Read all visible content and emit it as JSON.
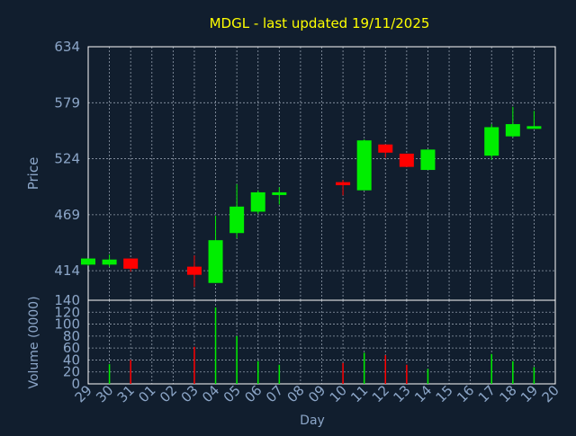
{
  "colors": {
    "background": "#111e2e",
    "title": "#ffff00",
    "axis_text": "#8ca6c8",
    "up": "#00ee00",
    "down": "#ff0000",
    "grid": "#c8d2e0",
    "frame": "#ffffff"
  },
  "chart_data": [
    {
      "type": "candlestick",
      "title": "MDGL - last updated 19/11/2025",
      "ylabel": "Price",
      "ylim": [
        385,
        634
      ],
      "yticks": [
        414,
        469,
        524,
        579,
        634
      ],
      "grid": true,
      "x_tick_labels": [
        "29",
        "30",
        "31",
        "01",
        "02",
        "03",
        "04",
        "05",
        "06",
        "07",
        "08",
        "09",
        "10",
        "11",
        "12",
        "13",
        "14",
        "15",
        "16",
        "17",
        "18",
        "19",
        "20"
      ],
      "candles": [
        {
          "day": "29",
          "open": 420,
          "high": 426,
          "low": 419,
          "close": 426
        },
        {
          "day": "30",
          "open": 420,
          "high": 430,
          "low": 418,
          "close": 425
        },
        {
          "day": "31",
          "open": 426,
          "high": 426,
          "low": 413,
          "close": 416
        },
        {
          "day": "03",
          "open": 418,
          "high": 429,
          "low": 398,
          "close": 410
        },
        {
          "day": "04",
          "open": 402,
          "high": 468,
          "low": 402,
          "close": 444
        },
        {
          "day": "05",
          "open": 451,
          "high": 499,
          "low": 446,
          "close": 477
        },
        {
          "day": "06",
          "open": 472,
          "high": 493,
          "low": 470,
          "close": 491
        },
        {
          "day": "07",
          "open": 489,
          "high": 496,
          "low": 479,
          "close": 491
        },
        {
          "day": "10",
          "open": 501,
          "high": 503,
          "low": 488,
          "close": 498
        },
        {
          "day": "11",
          "open": 493,
          "high": 543,
          "low": 493,
          "close": 542
        },
        {
          "day": "12",
          "open": 538,
          "high": 538,
          "low": 525,
          "close": 530
        },
        {
          "day": "13",
          "open": 529,
          "high": 529,
          "low": 516,
          "close": 516
        },
        {
          "day": "14",
          "open": 513,
          "high": 533,
          "low": 513,
          "close": 533
        },
        {
          "day": "17",
          "open": 527,
          "high": 558,
          "low": 523,
          "close": 555
        },
        {
          "day": "18",
          "open": 546,
          "high": 575,
          "low": 545,
          "close": 558
        },
        {
          "day": "19",
          "open": 555,
          "high": 571,
          "low": 554,
          "close": 556
        }
      ]
    },
    {
      "type": "bar",
      "ylabel": "Volume (0000)",
      "xlabel": "Day",
      "ylim": [
        0,
        140
      ],
      "yticks": [
        0,
        20,
        40,
        60,
        80,
        100,
        120,
        140
      ],
      "grid": true,
      "x_tick_labels": [
        "29",
        "30",
        "31",
        "01",
        "02",
        "03",
        "04",
        "05",
        "06",
        "07",
        "08",
        "09",
        "10",
        "11",
        "12",
        "13",
        "14",
        "15",
        "16",
        "17",
        "18",
        "19",
        "20"
      ],
      "bars": [
        {
          "day": "29",
          "value": 0,
          "direction": "up"
        },
        {
          "day": "30",
          "value": 33,
          "direction": "up"
        },
        {
          "day": "31",
          "value": 40,
          "direction": "down"
        },
        {
          "day": "03",
          "value": 62,
          "direction": "down"
        },
        {
          "day": "04",
          "value": 128,
          "direction": "up"
        },
        {
          "day": "05",
          "value": 80,
          "direction": "up"
        },
        {
          "day": "06",
          "value": 38,
          "direction": "up"
        },
        {
          "day": "07",
          "value": 32,
          "direction": "up"
        },
        {
          "day": "10",
          "value": 35,
          "direction": "down"
        },
        {
          "day": "11",
          "value": 52,
          "direction": "up"
        },
        {
          "day": "12",
          "value": 48,
          "direction": "down"
        },
        {
          "day": "13",
          "value": 32,
          "direction": "down"
        },
        {
          "day": "14",
          "value": 25,
          "direction": "up"
        },
        {
          "day": "17",
          "value": 50,
          "direction": "up"
        },
        {
          "day": "18",
          "value": 38,
          "direction": "up"
        },
        {
          "day": "19",
          "value": 28,
          "direction": "up"
        }
      ]
    }
  ]
}
